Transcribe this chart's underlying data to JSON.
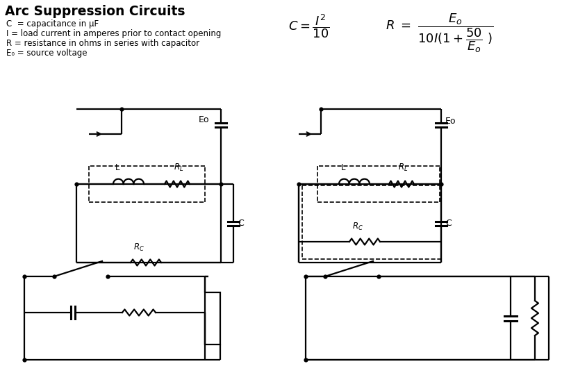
{
  "title": "Arc Suppression Circuits",
  "legend_lines": [
    "C  = capacitance in μF",
    "I = load current in amperes prior to contact opening",
    "R = resistance in ohms in series with capacitor",
    "E₀ = source voltage"
  ],
  "bg_color": "#ffffff",
  "line_color": "#000000"
}
